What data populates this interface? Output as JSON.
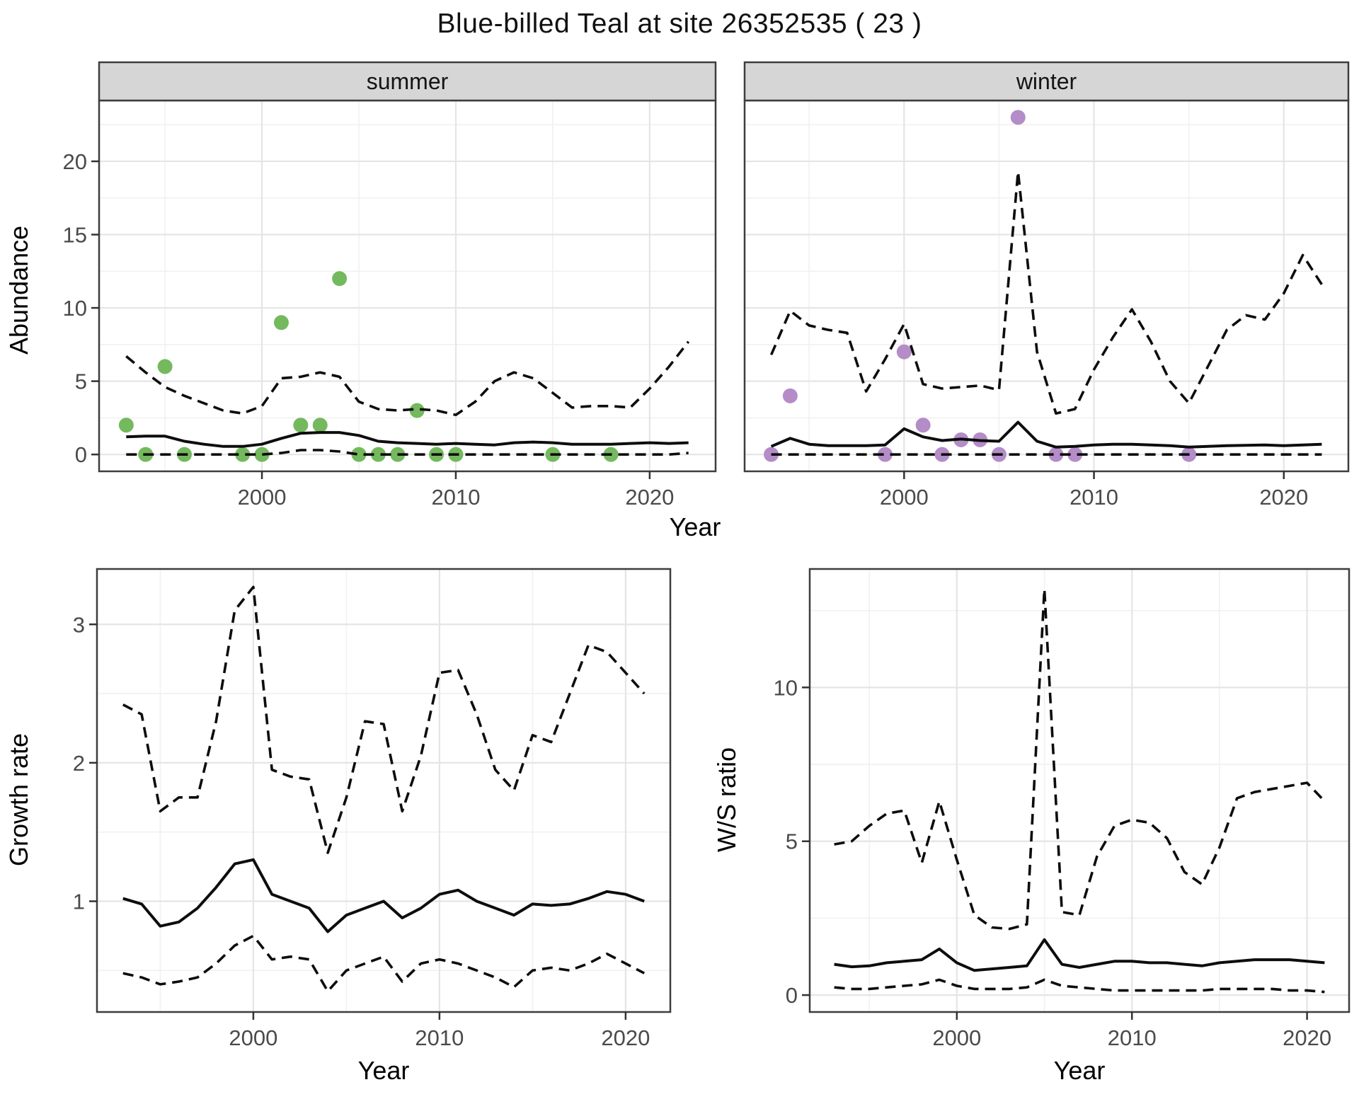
{
  "title": "Blue-billed Teal at site 26352535 ( 23 )",
  "labels": {
    "x_axis": "Year",
    "abundance": "Abundance",
    "growth_rate": "Growth rate",
    "ws_ratio": "W/S ratio"
  },
  "colors": {
    "summer_point": "#74b95e",
    "winter_point": "#b48cc8",
    "line": "#0d0d0d",
    "strip_bg": "#d6d6d6",
    "strip_text": "#141414",
    "panel_border": "#3d3d3d",
    "grid_major": "#e5e5e5",
    "grid_minor": "#f1f1f1",
    "tick_mark": "#333333",
    "tick_label": "#4a4a4a"
  },
  "chart_data": [
    {
      "id": "abundance-summer",
      "type": "line",
      "facet_label": "summer",
      "xlabel": "Year",
      "ylabel": "Abundance",
      "x": [
        1993,
        1994,
        1995,
        1996,
        1997,
        1998,
        1999,
        2000,
        2001,
        2002,
        2003,
        2004,
        2005,
        2006,
        2007,
        2008,
        2009,
        2010,
        2011,
        2012,
        2013,
        2014,
        2015,
        2016,
        2017,
        2018,
        2019,
        2020,
        2021,
        2022
      ],
      "series": [
        {
          "name": "upper_95ci",
          "style": "dashed",
          "values": [
            6.7,
            5.6,
            4.6,
            4.0,
            3.5,
            3.0,
            2.8,
            3.3,
            5.2,
            5.3,
            5.6,
            5.3,
            3.6,
            3.1,
            3.0,
            3.1,
            3.0,
            2.7,
            3.6,
            5.0,
            5.6,
            5.2,
            4.2,
            3.2,
            3.3,
            3.3,
            3.2,
            4.5,
            6.0,
            7.7
          ]
        },
        {
          "name": "mean",
          "style": "solid",
          "values": [
            1.2,
            1.25,
            1.25,
            0.9,
            0.7,
            0.55,
            0.55,
            0.7,
            1.1,
            1.45,
            1.5,
            1.5,
            1.3,
            0.9,
            0.8,
            0.75,
            0.7,
            0.75,
            0.7,
            0.65,
            0.8,
            0.85,
            0.8,
            0.7,
            0.7,
            0.7,
            0.75,
            0.8,
            0.75,
            0.8
          ]
        },
        {
          "name": "lower_95ci",
          "style": "dashed",
          "values": [
            0,
            0,
            0,
            0,
            0,
            0,
            0,
            0,
            0.1,
            0.3,
            0.3,
            0.2,
            0,
            0,
            0,
            0,
            0,
            0,
            0,
            0,
            0,
            0,
            0,
            0,
            0,
            0,
            0,
            0,
            0,
            0.1
          ]
        }
      ],
      "points": {
        "color": "#74b95e",
        "x": [
          1993,
          1994,
          1995,
          1996,
          1999,
          2000,
          2001,
          2002,
          2003,
          2004,
          2005,
          2006,
          2007,
          2008,
          2009,
          2010,
          2015,
          2018
        ],
        "y": [
          2,
          0,
          6,
          0,
          0,
          0,
          9,
          2,
          2,
          12,
          0,
          0,
          0,
          3,
          0,
          0,
          0,
          0
        ]
      },
      "xlim": [
        1991.6,
        2023.4
      ],
      "ylim": [
        -1.15,
        24.15
      ],
      "xticks": [
        2000,
        2010,
        2020
      ],
      "xtick_labels": [
        "2000",
        "2010",
        "2020"
      ],
      "yticks": [
        0,
        5,
        10,
        15,
        20
      ],
      "ytick_labels": [
        "0",
        "5",
        "10",
        "15",
        "20"
      ],
      "xminor": [
        1995,
        2005,
        2015
      ],
      "yminor": [
        2.5,
        7.5,
        12.5,
        17.5,
        22.5
      ]
    },
    {
      "id": "abundance-winter",
      "type": "line",
      "facet_label": "winter",
      "xlabel": "Year",
      "ylabel": "Abundance",
      "x": [
        1993,
        1994,
        1995,
        1996,
        1997,
        1998,
        1999,
        2000,
        2001,
        2002,
        2003,
        2004,
        2005,
        2006,
        2007,
        2008,
        2009,
        2010,
        2011,
        2012,
        2013,
        2014,
        2015,
        2016,
        2017,
        2018,
        2019,
        2020,
        2021,
        2022
      ],
      "series": [
        {
          "name": "upper_95ci",
          "style": "dashed",
          "values": [
            6.8,
            9.8,
            8.8,
            8.5,
            8.3,
            4.3,
            6.5,
            8.9,
            4.8,
            4.5,
            4.6,
            4.7,
            4.4,
            19.3,
            7.0,
            2.8,
            3.1,
            5.8,
            8.0,
            9.9,
            7.7,
            5.0,
            3.5,
            6.0,
            8.5,
            9.5,
            9.2,
            11.0,
            13.6,
            11.6
          ]
        },
        {
          "name": "mean",
          "style": "solid",
          "values": [
            0.55,
            1.1,
            0.7,
            0.6,
            0.6,
            0.6,
            0.65,
            1.75,
            1.2,
            0.95,
            1.05,
            0.95,
            0.9,
            2.2,
            0.9,
            0.5,
            0.55,
            0.65,
            0.7,
            0.7,
            0.65,
            0.6,
            0.5,
            0.55,
            0.6,
            0.62,
            0.65,
            0.6,
            0.65,
            0.7
          ]
        },
        {
          "name": "lower_95ci",
          "style": "dashed",
          "values": [
            0,
            0,
            0,
            0,
            0,
            0,
            0,
            0,
            0,
            0,
            0,
            0,
            0,
            0,
            0,
            0,
            0,
            0,
            0,
            0,
            0,
            0,
            0,
            0,
            0,
            0,
            0,
            0,
            0,
            0
          ]
        }
      ],
      "points": {
        "color": "#b48cc8",
        "x": [
          1993,
          1994,
          1999,
          2000,
          2001,
          2002,
          2003,
          2004,
          2005,
          2006,
          2008,
          2009,
          2015
        ],
        "y": [
          0,
          4,
          0,
          7,
          2,
          0,
          1,
          1,
          0,
          23,
          0,
          0,
          0
        ]
      },
      "xlim": [
        1991.6,
        2023.4
      ],
      "ylim": [
        -1.15,
        24.15
      ],
      "xticks": [
        2000,
        2010,
        2020
      ],
      "xtick_labels": [
        "2000",
        "2010",
        "2020"
      ],
      "yticks": [
        0,
        5,
        10,
        15,
        20
      ],
      "ytick_labels": [
        "0",
        "5",
        "10",
        "15",
        "20"
      ],
      "xminor": [
        1995,
        2005,
        2015
      ],
      "yminor": [
        2.5,
        7.5,
        12.5,
        17.5,
        22.5
      ]
    },
    {
      "id": "growth-rate",
      "type": "line",
      "xlabel": "Year",
      "ylabel": "Growth rate",
      "x": [
        1993,
        1994,
        1995,
        1996,
        1997,
        1998,
        1999,
        2000,
        2001,
        2002,
        2003,
        2004,
        2005,
        2006,
        2007,
        2008,
        2009,
        2010,
        2011,
        2012,
        2013,
        2014,
        2015,
        2016,
        2017,
        2018,
        2019,
        2020,
        2021
      ],
      "series": [
        {
          "name": "upper_95ci",
          "style": "dashed",
          "values": [
            2.42,
            2.35,
            1.65,
            1.75,
            1.75,
            2.3,
            3.1,
            3.27,
            1.95,
            1.9,
            1.88,
            1.35,
            1.75,
            2.3,
            2.28,
            1.65,
            2.05,
            2.65,
            2.67,
            2.35,
            1.95,
            1.8,
            2.2,
            2.15,
            2.5,
            2.85,
            2.8,
            2.65,
            2.5
          ]
        },
        {
          "name": "mean",
          "style": "solid",
          "values": [
            1.02,
            0.98,
            0.82,
            0.85,
            0.95,
            1.1,
            1.27,
            1.3,
            1.05,
            1.0,
            0.95,
            0.78,
            0.9,
            0.95,
            1.0,
            0.88,
            0.95,
            1.05,
            1.08,
            1.0,
            0.95,
            0.9,
            0.98,
            0.97,
            0.98,
            1.02,
            1.07,
            1.05,
            1.0
          ]
        },
        {
          "name": "lower_95ci",
          "style": "dashed",
          "values": [
            0.48,
            0.45,
            0.4,
            0.42,
            0.45,
            0.55,
            0.68,
            0.75,
            0.58,
            0.6,
            0.58,
            0.35,
            0.5,
            0.55,
            0.6,
            0.42,
            0.55,
            0.58,
            0.55,
            0.5,
            0.45,
            0.38,
            0.5,
            0.52,
            0.5,
            0.55,
            0.62,
            0.55,
            0.48
          ]
        }
      ],
      "xlim": [
        1991.6,
        2022.4
      ],
      "ylim": [
        0.2,
        3.4
      ],
      "xticks": [
        2000,
        2010,
        2020
      ],
      "xtick_labels": [
        "2000",
        "2010",
        "2020"
      ],
      "yticks": [
        1,
        2,
        3
      ],
      "ytick_labels": [
        "1",
        "2",
        "3"
      ],
      "xminor": [
        1995,
        2005,
        2015
      ],
      "yminor": [
        0.5,
        1.5,
        2.5
      ]
    },
    {
      "id": "ws-ratio",
      "type": "line",
      "xlabel": "Year",
      "ylabel": "W/S ratio",
      "x": [
        1993,
        1994,
        1995,
        1996,
        1997,
        1998,
        1999,
        2000,
        2001,
        2002,
        2003,
        2004,
        2005,
        2006,
        2007,
        2008,
        2009,
        2010,
        2011,
        2012,
        2013,
        2014,
        2015,
        2016,
        2017,
        2018,
        2019,
        2020,
        2021
      ],
      "series": [
        {
          "name": "upper_95ci",
          "style": "dashed",
          "values": [
            4.9,
            5.0,
            5.5,
            5.9,
            6.0,
            4.3,
            6.3,
            4.4,
            2.6,
            2.2,
            2.15,
            2.3,
            13.2,
            2.7,
            2.6,
            4.5,
            5.5,
            5.7,
            5.6,
            5.1,
            4.0,
            3.6,
            4.8,
            6.4,
            6.6,
            6.7,
            6.8,
            6.9,
            6.3
          ]
        },
        {
          "name": "mean",
          "style": "solid",
          "values": [
            1.0,
            0.92,
            0.95,
            1.05,
            1.1,
            1.15,
            1.5,
            1.05,
            0.8,
            0.85,
            0.9,
            0.95,
            1.8,
            1.0,
            0.9,
            1.0,
            1.1,
            1.1,
            1.05,
            1.05,
            1.0,
            0.95,
            1.05,
            1.1,
            1.15,
            1.15,
            1.15,
            1.1,
            1.05
          ]
        },
        {
          "name": "lower_95ci",
          "style": "dashed",
          "values": [
            0.25,
            0.2,
            0.2,
            0.25,
            0.3,
            0.35,
            0.5,
            0.3,
            0.2,
            0.2,
            0.2,
            0.25,
            0.5,
            0.3,
            0.25,
            0.2,
            0.15,
            0.15,
            0.15,
            0.15,
            0.15,
            0.15,
            0.2,
            0.2,
            0.2,
            0.2,
            0.15,
            0.15,
            0.1
          ]
        }
      ],
      "xlim": [
        1991.6,
        2022.4
      ],
      "ylim": [
        -0.55,
        13.85
      ],
      "xticks": [
        2000,
        2010,
        2020
      ],
      "xtick_labels": [
        "2000",
        "2010",
        "2020"
      ],
      "yticks": [
        0,
        5,
        10
      ],
      "ytick_labels": [
        "0",
        "5",
        "10"
      ],
      "xminor": [
        1995,
        2005,
        2015
      ],
      "yminor": [
        2.5,
        7.5,
        12.5
      ]
    }
  ]
}
